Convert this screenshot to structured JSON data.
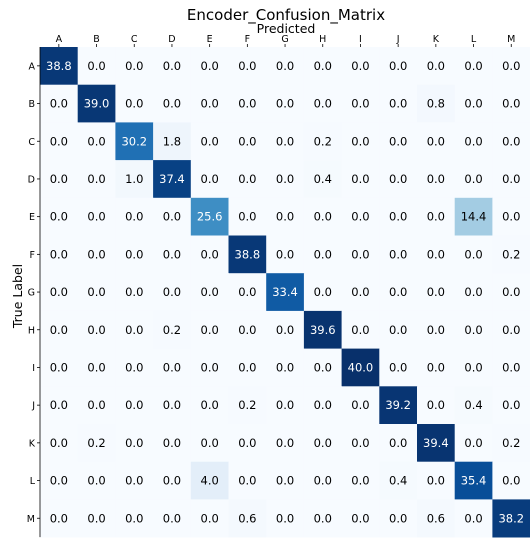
{
  "chart_data": {
    "type": "heatmap",
    "title": "Encoder_Confusion_Matrix",
    "xlabel": "Predicted",
    "ylabel": "True Label",
    "x_categories": [
      "A",
      "B",
      "C",
      "D",
      "E",
      "F",
      "G",
      "H",
      "I",
      "J",
      "K",
      "L",
      "M"
    ],
    "y_categories": [
      "A",
      "B",
      "C",
      "D",
      "E",
      "F",
      "G",
      "H",
      "I",
      "J",
      "K",
      "L",
      "M"
    ],
    "value_range": [
      0,
      40
    ],
    "colormap": "Blues",
    "matrix": [
      [
        38.8,
        0.0,
        0.0,
        0.0,
        0.0,
        0.0,
        0.0,
        0.0,
        0.0,
        0.0,
        0.0,
        0.0,
        0.0
      ],
      [
        0.0,
        39.0,
        0.0,
        0.0,
        0.0,
        0.0,
        0.0,
        0.0,
        0.0,
        0.0,
        0.8,
        0.0,
        0.0
      ],
      [
        0.0,
        0.0,
        30.2,
        1.8,
        0.0,
        0.0,
        0.0,
        0.2,
        0.0,
        0.0,
        0.0,
        0.0,
        0.0
      ],
      [
        0.0,
        0.0,
        1.0,
        37.4,
        0.0,
        0.0,
        0.0,
        0.4,
        0.0,
        0.0,
        0.0,
        0.0,
        0.0
      ],
      [
        0.0,
        0.0,
        0.0,
        0.0,
        25.6,
        0.0,
        0.0,
        0.0,
        0.0,
        0.0,
        0.0,
        14.4,
        0.0
      ],
      [
        0.0,
        0.0,
        0.0,
        0.0,
        0.0,
        38.8,
        0.0,
        0.0,
        0.0,
        0.0,
        0.0,
        0.0,
        0.2
      ],
      [
        0.0,
        0.0,
        0.0,
        0.0,
        0.0,
        0.0,
        33.4,
        0.0,
        0.0,
        0.0,
        0.0,
        0.0,
        0.0
      ],
      [
        0.0,
        0.0,
        0.0,
        0.2,
        0.0,
        0.0,
        0.0,
        39.6,
        0.0,
        0.0,
        0.0,
        0.0,
        0.0
      ],
      [
        0.0,
        0.0,
        0.0,
        0.0,
        0.0,
        0.0,
        0.0,
        0.0,
        40.0,
        0.0,
        0.0,
        0.0,
        0.0
      ],
      [
        0.0,
        0.0,
        0.0,
        0.0,
        0.0,
        0.2,
        0.0,
        0.0,
        0.0,
        39.2,
        0.0,
        0.4,
        0.0
      ],
      [
        0.0,
        0.2,
        0.0,
        0.0,
        0.0,
        0.0,
        0.0,
        0.0,
        0.0,
        0.0,
        39.4,
        0.0,
        0.2
      ],
      [
        0.0,
        0.0,
        0.0,
        0.0,
        4.0,
        0.0,
        0.0,
        0.0,
        0.0,
        0.4,
        0.0,
        35.4,
        0.0
      ],
      [
        0.0,
        0.0,
        0.0,
        0.0,
        0.0,
        0.6,
        0.0,
        0.0,
        0.0,
        0.0,
        0.6,
        0.0,
        38.2
      ]
    ]
  }
}
